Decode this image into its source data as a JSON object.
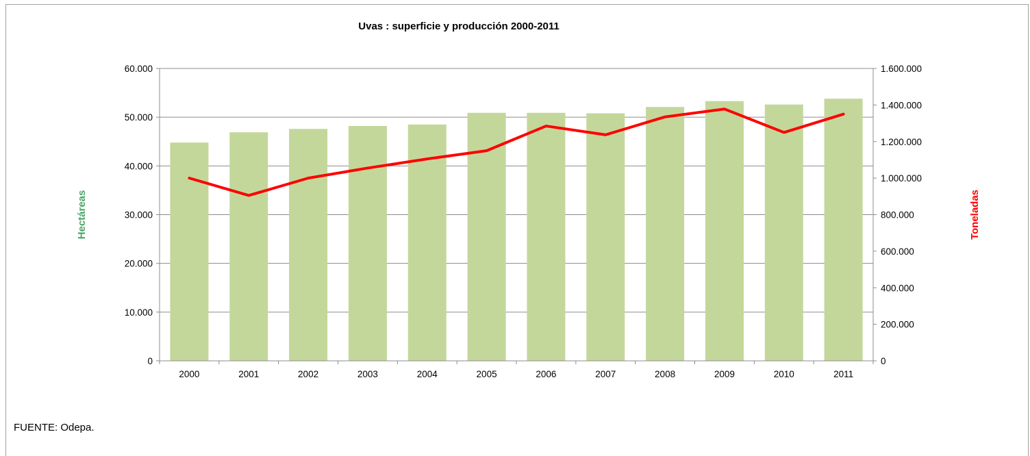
{
  "chart_data": {
    "type": "bar",
    "title": "Uvas : superficie y producción 2000-2011",
    "categories": [
      "2000",
      "2001",
      "2002",
      "2003",
      "2004",
      "2005",
      "2006",
      "2007",
      "2008",
      "2009",
      "2010",
      "2011"
    ],
    "series": [
      {
        "axis": "left",
        "type": "bar",
        "color": "#c4d79b",
        "values": [
          44800,
          46900,
          47600,
          48200,
          48500,
          50900,
          50900,
          50800,
          52100,
          53300,
          52600,
          53800
        ]
      },
      {
        "axis": "right",
        "type": "line",
        "color": "#ff0000",
        "values": [
          1000000,
          905000,
          1000000,
          1055000,
          1105000,
          1150000,
          1285000,
          1237000,
          1335000,
          1378000,
          1250000,
          1350000
        ]
      }
    ],
    "ylabel_left": "Hectáreas",
    "ylabel_left_color": "#4aa564",
    "ylabel_right": "Toneladas",
    "ylabel_right_color": "#ff0000",
    "ylim_left": [
      0,
      60000
    ],
    "ylim_right": [
      0,
      1600000
    ],
    "yticks_left": [
      "0",
      "10.000",
      "20.000",
      "30.000",
      "40.000",
      "50.000",
      "60.000"
    ],
    "yticks_right": [
      "0",
      "200.000",
      "400.000",
      "600.000",
      "800.000",
      "1.000.000",
      "1.200.000",
      "1.400.000",
      "1.600.000"
    ],
    "grid": true,
    "legend": "none"
  },
  "footer": {
    "source": "FUENTE: Odepa."
  }
}
